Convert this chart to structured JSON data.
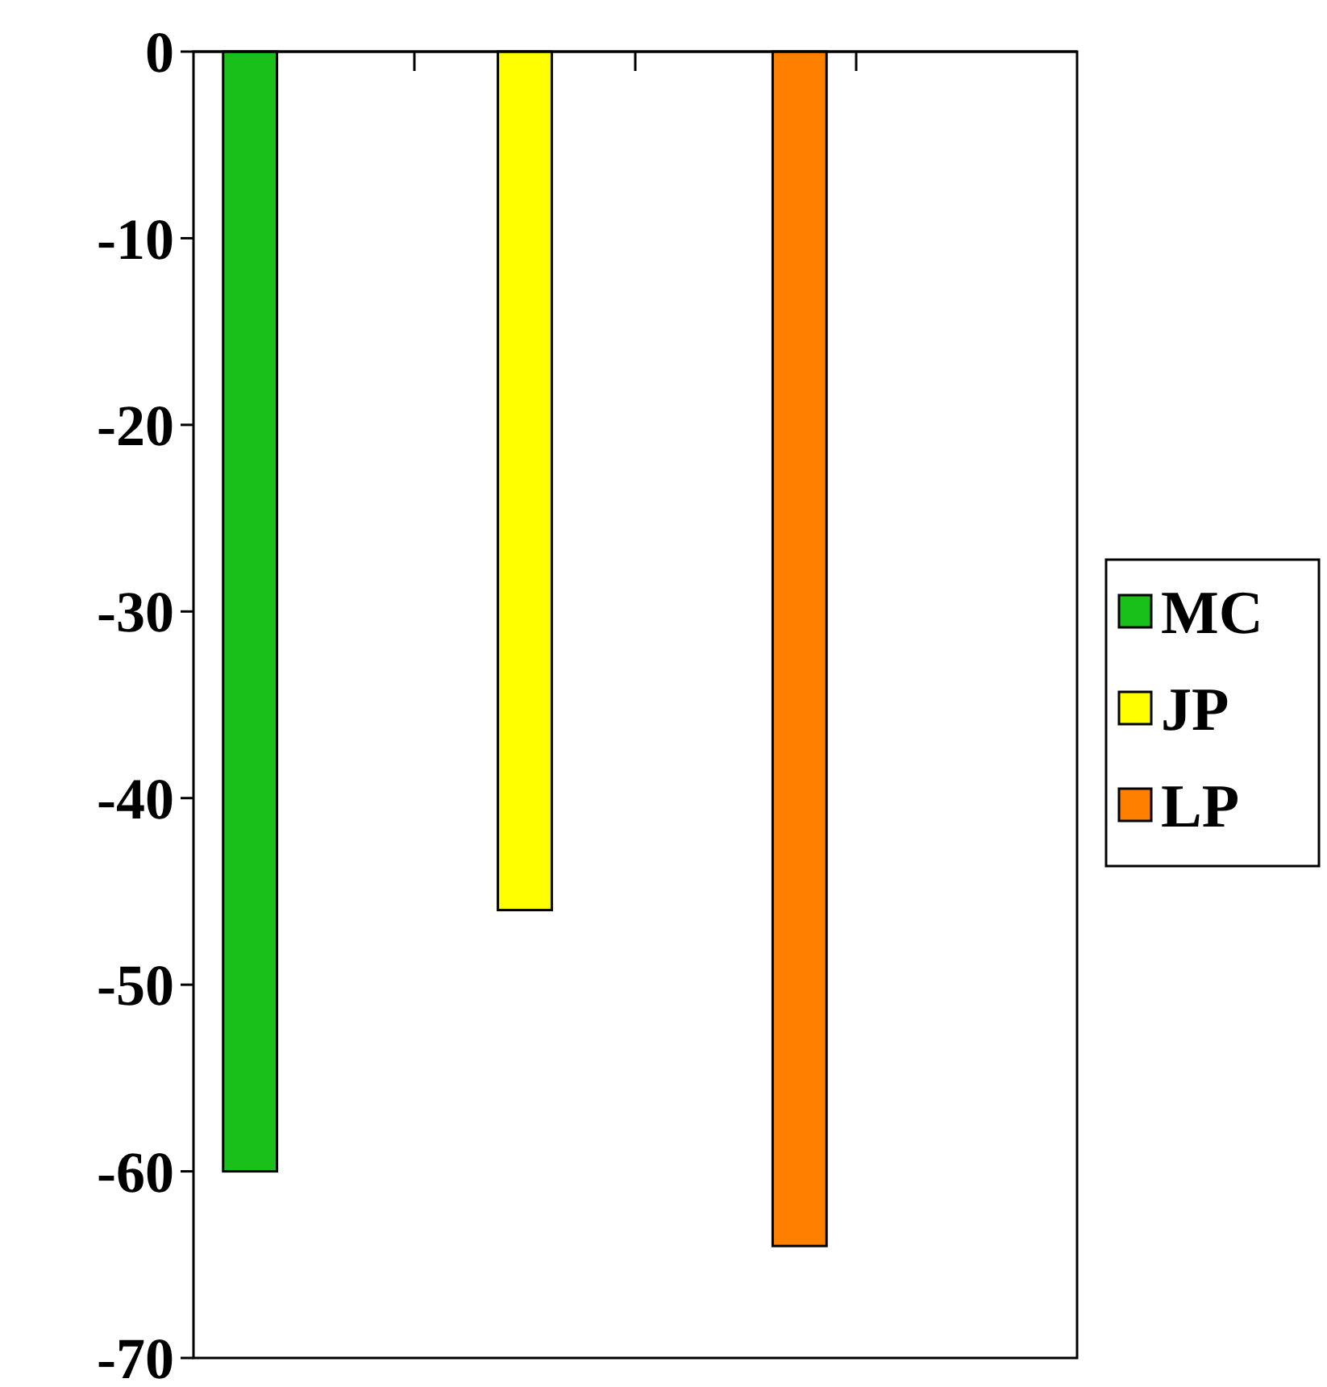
{
  "chart_data": {
    "type": "bar",
    "categories": [
      null,
      null,
      null,
      null
    ],
    "series": [
      {
        "name": "MC",
        "color": "#19c019",
        "values": [
          -60,
          null,
          null,
          null
        ]
      },
      {
        "name": "JP",
        "color": "#ffff00",
        "values": [
          null,
          -46,
          null,
          null
        ]
      },
      {
        "name": "LP",
        "color": "#ff8000",
        "values": [
          null,
          null,
          -64,
          null
        ]
      }
    ],
    "ylim": [
      -70,
      0
    ],
    "yticks": [
      -70,
      -60,
      -50,
      -40,
      -30,
      -20,
      -10,
      0
    ],
    "grid": false,
    "legend": "right"
  }
}
